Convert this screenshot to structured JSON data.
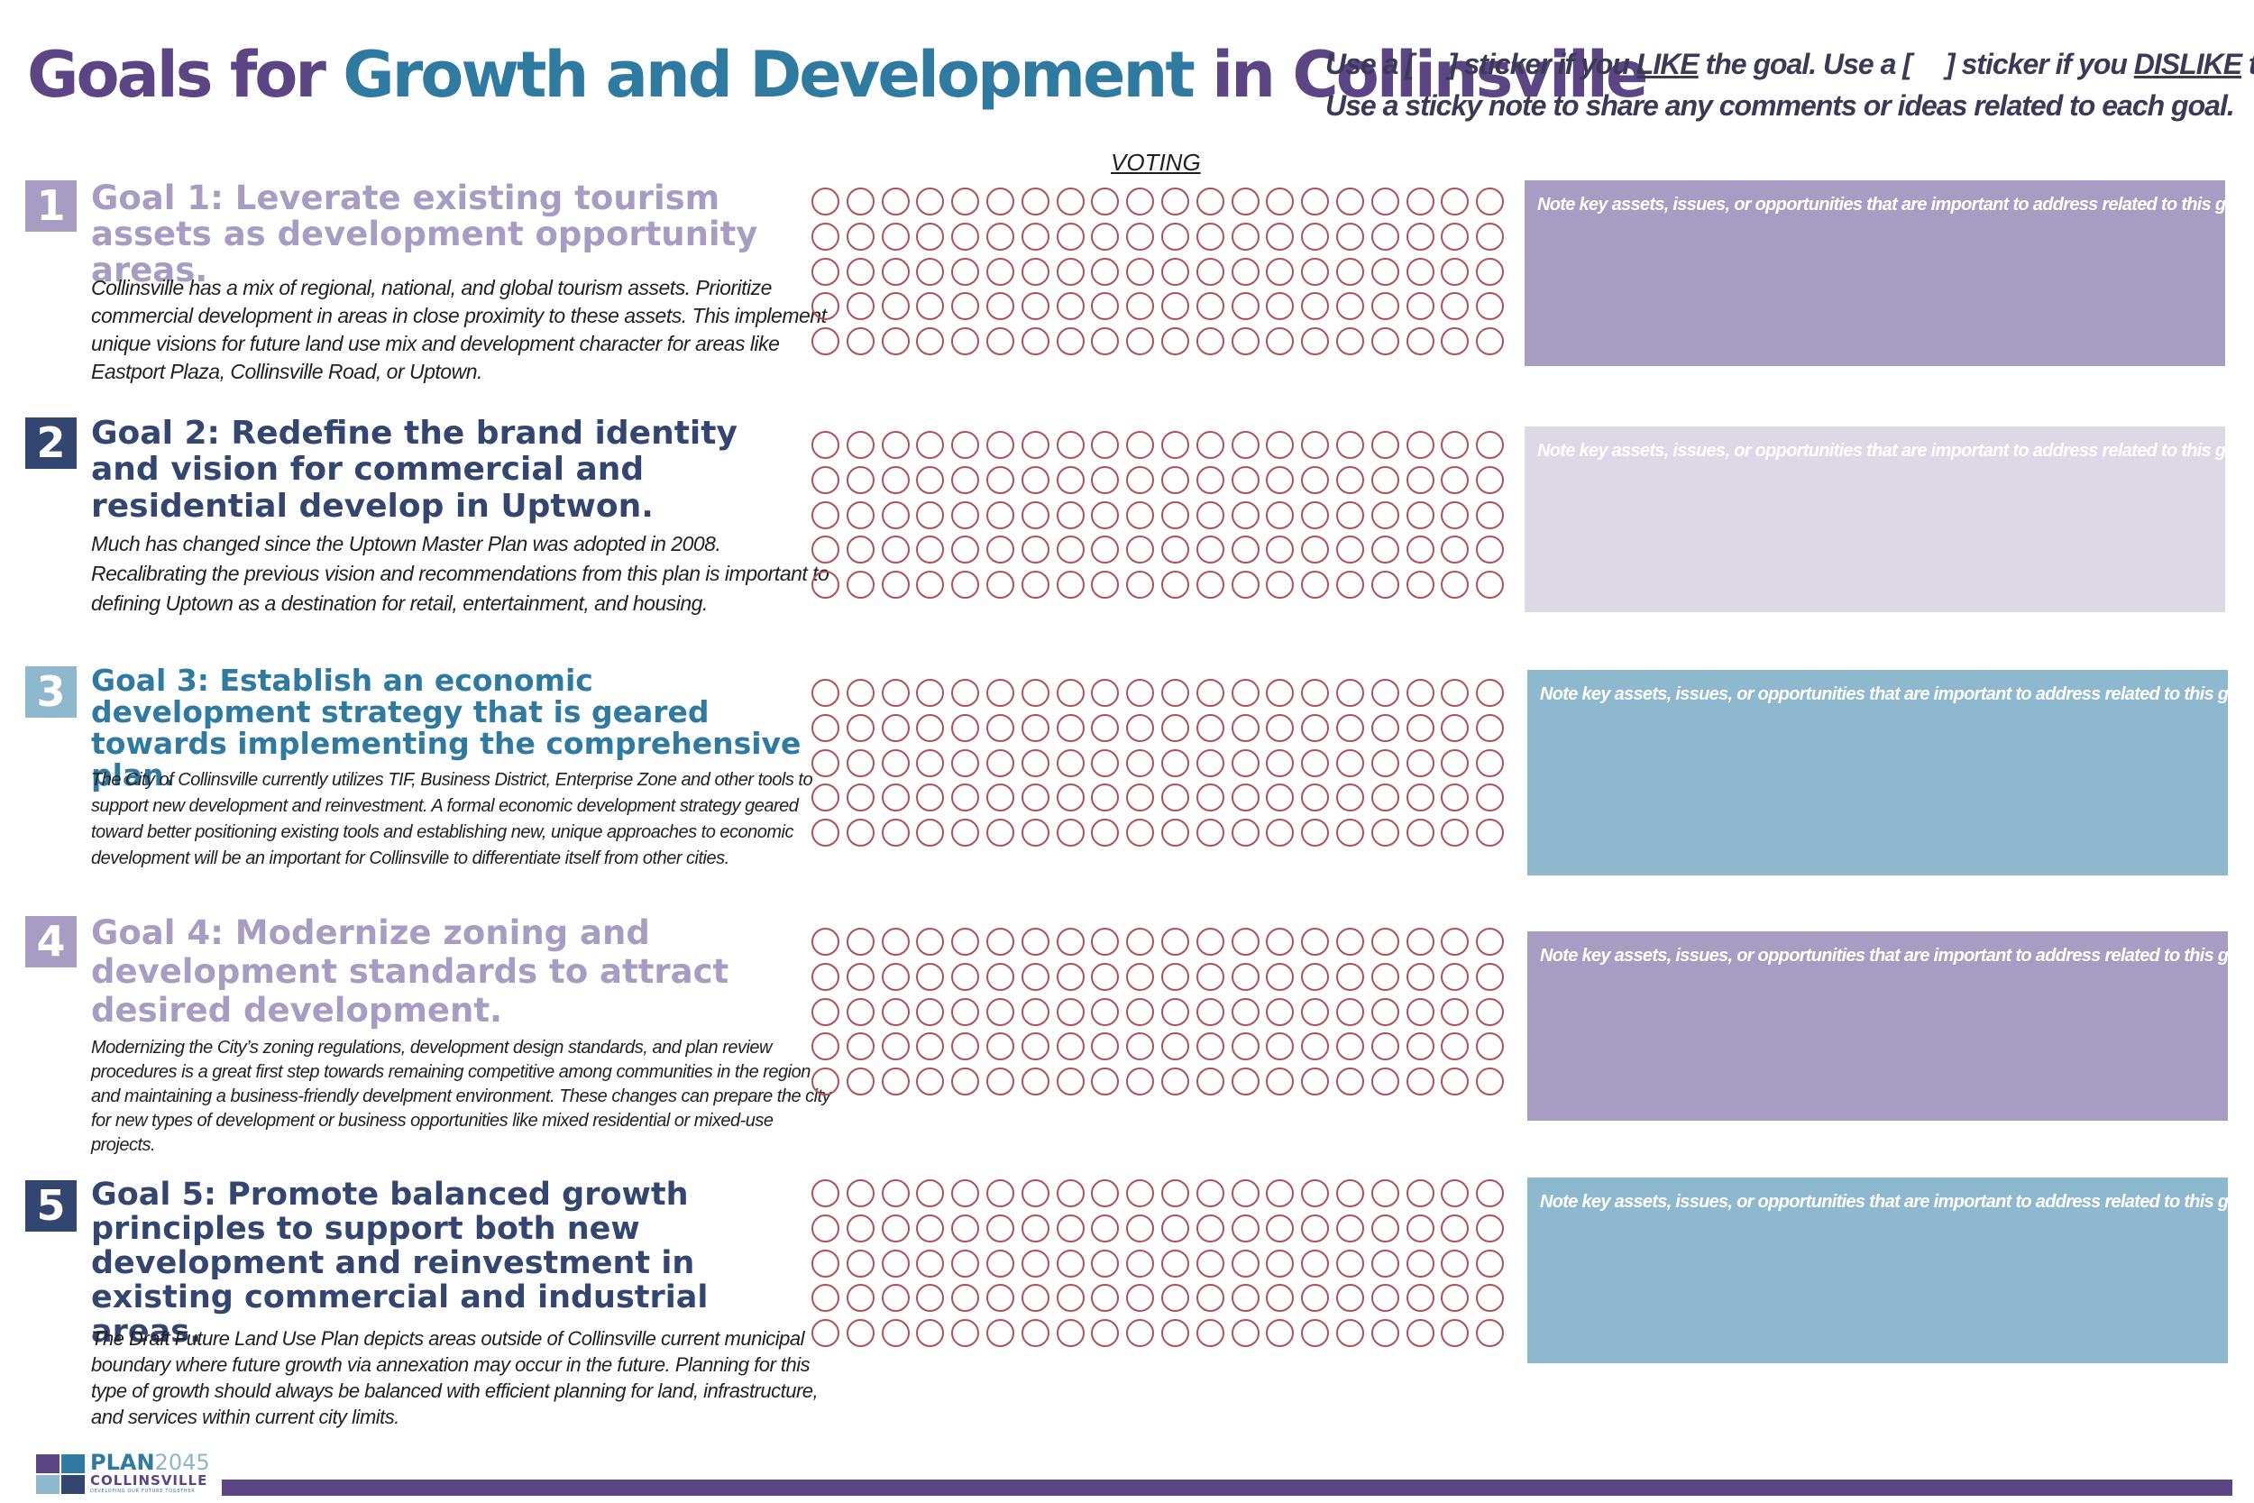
{
  "header": {
    "title_part1": "Goals for ",
    "title_part2": "Growth and Development",
    "title_part3": " in Collinsville",
    "instr_1": "Use a [",
    "instr_2": "] sticker if you ",
    "instr_like": "LIKE",
    "instr_3": " the goal. Use a [",
    "instr_4": "] sticker if you ",
    "instr_dislike": "DISLIKE",
    "instr_5": " the goal.",
    "instr_line2": "Use a sticky note to share any comments or ideas related to each goal.",
    "voting_label": "VOTING"
  },
  "colors": {
    "purple_dark": "#5b4585",
    "blue_teal": "#2e7aa0",
    "navy": "#33466f",
    "lavender": "#a79dc2",
    "lavender_light": "#dcd8e6",
    "sky": "#8db8cd",
    "bubble_outline": "#b0505a"
  },
  "goals": [
    {
      "number": "1",
      "title": "Goal 1: Leverate existing tourism assets as development opportunity areas.",
      "body": "Collinsville has a mix of regional, national, and global tourism assets. Prioritize commercial development in areas in close proximity to these assets. This implement unique visions for future land use mix and development character for areas like Eastport Plaza, Collinsville Road, or Uptown.",
      "accent": "#a79dc2",
      "number_bg": "#a79dc2",
      "note_bg": "#a79dc2",
      "note_text": "Note key assets, issues, or opportunities that are important to address related to this goal."
    },
    {
      "number": "2",
      "title": "Goal 2: Redefine the brand identity and vision for commercial and residential develop in Uptwon.",
      "body": "Much has changed since the Uptown Master Plan was adopted in 2008. Recalibrating the previous vision and recommendations from this plan is important to defining Uptown as a destination for retail, entertainment, and housing.",
      "accent": "#33466f",
      "number_bg": "#33466f",
      "note_bg": "#dcd8e6",
      "note_text": "Note key assets, issues, or opportunities that are important to address related to this goal."
    },
    {
      "number": "3",
      "title": "Goal 3: Establish an economic development strategy that is geared towards implementing the comprehensive plan.",
      "body": "The City of Collinsville currently utilizes TIF, Business District, Enterprise Zone and other tools to support new development and reinvestment. A formal economic development strategy geared toward better positioning existing tools and establishing new, unique approaches to economic development will be an important for Collinsville to differentiate itself from other cities.",
      "accent": "#2e7aa0",
      "number_bg": "#8db8cd",
      "note_bg": "#8db8cd",
      "note_text": "Note key assets, issues, or opportunities that are important to address related to this goal."
    },
    {
      "number": "4",
      "title": "Goal 4: Modernize zoning and development standards to attract desired development.",
      "body": "Modernizing the City’s zoning regulations, development design standards, and plan review procedures is a great first step towards remaining competitive among communities in the region and maintaining a business-friendly develpment environment. These changes can prepare the city for new types of development or business opportunities like mixed residential or mixed-use projects.",
      "accent": "#a79dc2",
      "number_bg": "#a79dc2",
      "note_bg": "#a79dc2",
      "note_text": "Note key assets, issues, or opportunities that are important to address related to this goal."
    },
    {
      "number": "5",
      "title": "Goal 5: Promote balanced growth principles to support both new development and reinvestment in existing commercial and industrial areas.",
      "body": "The Draft Future Land Use Plan depicts areas outside of Collinsville current municipal boundary where future growth via annexation may occur in the future. Planning for this type of growth should always be balanced with efficient planning for land, infrastructure, and services within current city limits.",
      "accent": "#33466f",
      "number_bg": "#33466f",
      "note_bg": "#8db8cd",
      "note_text": "Note key assets, issues, or opportunities that are important to address related to this goal."
    }
  ],
  "logo": {
    "name": "PLAN",
    "year": "2045",
    "city": "COLLINSVILLE",
    "tagline": "DEVELOPING OUR FUTURE TOGETHER"
  }
}
